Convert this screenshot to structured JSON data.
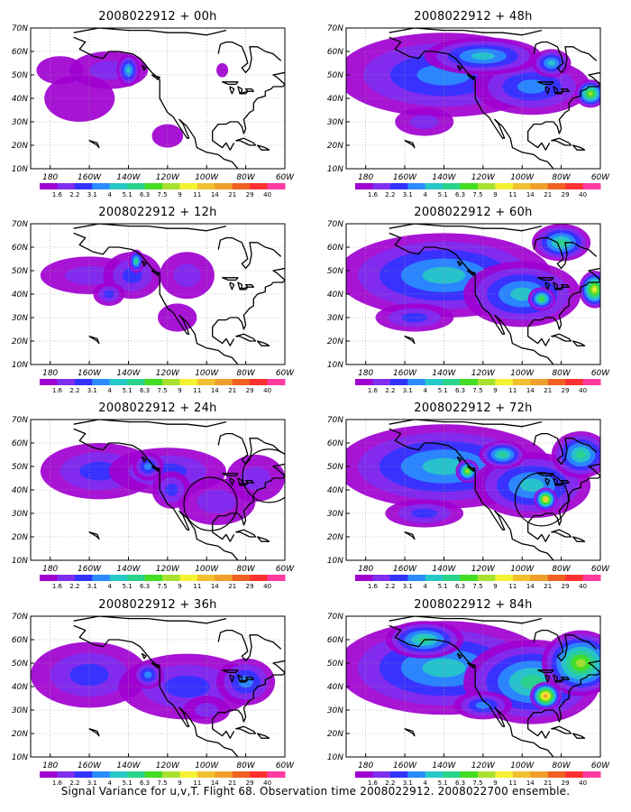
{
  "figure": {
    "caption": "Signal Variance for u,v,T. Flight 68. Observation time 2008022912. 2008022700 ensemble."
  },
  "colors": {
    "colorbar": [
      "#a000d0",
      "#7f2ef0",
      "#3333ff",
      "#2a8cff",
      "#27c8c8",
      "#2ad38a",
      "#44dd22",
      "#a8e030",
      "#f5f233",
      "#f0c030",
      "#f0a02a",
      "#f06020",
      "#ff3030",
      "#ff3ba0"
    ],
    "coast": "#000000",
    "grid": "#9a9a9a"
  },
  "chart_data": {
    "type": "heatmap",
    "variable": "Signal Variance for u,v,T",
    "colorbar_levels": [
      "1.6",
      "2.2",
      "3.1",
      "4",
      "5.1",
      "6.3",
      "7.5",
      "9",
      "11",
      "14",
      "21",
      "29",
      "40"
    ],
    "x_ticks": [
      "180",
      "160W",
      "140W",
      "120W",
      "100W",
      "80W",
      "60W"
    ],
    "y_ticks": [
      "10N",
      "20N",
      "30N",
      "40N",
      "50N",
      "60N",
      "70N"
    ],
    "xlim_lon": [
      -190,
      -60
    ],
    "ylim_lat": [
      10,
      70
    ],
    "grid": true,
    "panels": [
      {
        "title": "2008022912 + 00h",
        "lead_hours": 0,
        "column": "left",
        "blobs": [
          [
            -165,
            40,
            18,
            10,
            1
          ],
          [
            -150,
            52,
            20,
            8,
            2
          ],
          [
            -140,
            52,
            6,
            7,
            5
          ],
          [
            -175,
            52,
            12,
            6,
            1
          ],
          [
            -120,
            24,
            8,
            5,
            1
          ],
          [
            -92,
            52,
            3,
            3,
            1
          ]
        ],
        "circles": []
      },
      {
        "title": "2008022912 + 12h",
        "lead_hours": 12,
        "column": "left",
        "blobs": [
          [
            -160,
            48,
            25,
            8,
            2
          ],
          [
            -138,
            48,
            15,
            10,
            3
          ],
          [
            -136,
            54,
            4,
            5,
            6
          ],
          [
            -150,
            40,
            8,
            5,
            3
          ],
          [
            -110,
            48,
            14,
            10,
            2
          ],
          [
            -115,
            30,
            10,
            6,
            1
          ]
        ],
        "circles": []
      },
      {
        "title": "2008022912 + 24h",
        "lead_hours": 24,
        "column": "left",
        "blobs": [
          [
            -155,
            48,
            30,
            12,
            3
          ],
          [
            -120,
            48,
            30,
            10,
            3
          ],
          [
            -95,
            35,
            20,
            10,
            2
          ],
          [
            -75,
            45,
            15,
            10,
            2
          ],
          [
            -130,
            50,
            8,
            6,
            4
          ],
          [
            -118,
            40,
            10,
            8,
            3
          ]
        ],
        "circles": [
          [
            -98,
            34,
            8
          ],
          [
            -68,
            46,
            8
          ]
        ]
      },
      {
        "title": "2008022912 + 36h",
        "lead_hours": 36,
        "column": "left",
        "blobs": [
          [
            -160,
            45,
            30,
            14,
            3
          ],
          [
            -110,
            40,
            35,
            14,
            3
          ],
          [
            -80,
            42,
            15,
            10,
            4
          ],
          [
            -130,
            45,
            8,
            6,
            4
          ],
          [
            -100,
            30,
            12,
            6,
            2
          ]
        ],
        "circles": []
      },
      {
        "title": "2008022912 + 48h",
        "lead_hours": 48,
        "column": "right",
        "blobs": [
          [
            -140,
            50,
            55,
            18,
            4
          ],
          [
            -95,
            45,
            30,
            12,
            4
          ],
          [
            -120,
            58,
            30,
            8,
            5
          ],
          [
            -65,
            42,
            8,
            6,
            8
          ],
          [
            -85,
            55,
            10,
            6,
            5
          ],
          [
            -150,
            30,
            15,
            6,
            2
          ]
        ],
        "circles": []
      },
      {
        "title": "2008022912 + 60h",
        "lead_hours": 60,
        "column": "right",
        "blobs": [
          [
            -140,
            48,
            55,
            18,
            5
          ],
          [
            -100,
            40,
            30,
            14,
            5
          ],
          [
            -90,
            38,
            7,
            5,
            7
          ],
          [
            -63,
            42,
            8,
            8,
            9
          ],
          [
            -80,
            62,
            15,
            8,
            6
          ],
          [
            -155,
            30,
            20,
            6,
            3
          ]
        ],
        "circles": []
      },
      {
        "title": "2008022912 + 72h",
        "lead_hours": 72,
        "column": "right",
        "blobs": [
          [
            -140,
            50,
            55,
            18,
            5
          ],
          [
            -95,
            42,
            30,
            14,
            5
          ],
          [
            -88,
            36,
            6,
            5,
            10
          ],
          [
            -128,
            48,
            6,
            5,
            8
          ],
          [
            -70,
            55,
            15,
            10,
            6
          ],
          [
            -110,
            55,
            12,
            6,
            6
          ],
          [
            -150,
            30,
            20,
            6,
            3
          ]
        ],
        "circles": [
          [
            -90,
            36,
            8
          ]
        ]
      },
      {
        "title": "2008022912 + 84h",
        "lead_hours": 84,
        "column": "right",
        "blobs": [
          [
            -140,
            48,
            55,
            20,
            5
          ],
          [
            -95,
            42,
            35,
            18,
            6
          ],
          [
            -88,
            36,
            8,
            6,
            11
          ],
          [
            -70,
            50,
            20,
            14,
            8
          ],
          [
            -150,
            60,
            20,
            8,
            6
          ],
          [
            -120,
            32,
            15,
            6,
            4
          ]
        ],
        "circles": []
      }
    ]
  }
}
